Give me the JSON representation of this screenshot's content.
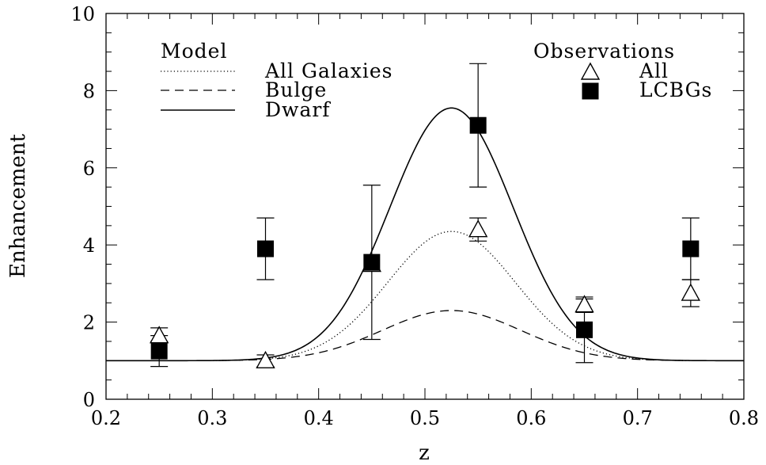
{
  "chart_data": {
    "type": "scatter",
    "xlabel": "z",
    "ylabel": "Enhancement",
    "xlim": [
      0.2,
      0.8
    ],
    "ylim": [
      0,
      10
    ],
    "xticks": [
      "0.2",
      "0.3",
      "0.4",
      "0.5",
      "0.6",
      "0.7",
      "0.8"
    ],
    "yticks": [
      "0",
      "2",
      "4",
      "6",
      "8",
      "10"
    ],
    "grid": false,
    "model_legend": {
      "title": "Model",
      "entries": [
        {
          "name": "All Galaxies",
          "style": "dotted"
        },
        {
          "name": "Bulge",
          "style": "dashed"
        },
        {
          "name": "Dwarf",
          "style": "solid"
        }
      ]
    },
    "observations_legend": {
      "title": "Observations",
      "entries": [
        {
          "name": "All",
          "marker": "open-triangle"
        },
        {
          "name": "LCBGs",
          "marker": "filled-square"
        }
      ]
    },
    "curves": [
      {
        "name": "All Galaxies",
        "style": "dotted",
        "center": 0.525,
        "sigma": 0.06,
        "baseline": 1.0,
        "peak": 4.35
      },
      {
        "name": "Bulge",
        "style": "dashed",
        "center": 0.525,
        "sigma": 0.065,
        "baseline": 1.0,
        "peak": 2.3
      },
      {
        "name": "Dwarf",
        "style": "solid",
        "center": 0.525,
        "sigma": 0.058,
        "baseline": 1.0,
        "peak": 7.55
      }
    ],
    "series": [
      {
        "name": "All",
        "marker": "open-triangle",
        "points": [
          {
            "x": 0.25,
            "y": 1.65,
            "err_low": 1.5,
            "err_high": 1.85
          },
          {
            "x": 0.35,
            "y": 1.0,
            "err_low": 0.85,
            "err_high": 1.15
          },
          {
            "x": 0.45,
            "y": 3.5,
            "err_low": 3.5,
            "err_high": 3.5
          },
          {
            "x": 0.55,
            "y": 4.4,
            "err_low": 4.1,
            "err_high": 4.7
          },
          {
            "x": 0.65,
            "y": 2.45,
            "err_low": 2.25,
            "err_high": 2.65
          },
          {
            "x": 0.75,
            "y": 2.75,
            "err_low": 2.4,
            "err_high": 3.1
          }
        ]
      },
      {
        "name": "LCBGs",
        "marker": "filled-square",
        "points": [
          {
            "x": 0.25,
            "y": 1.25,
            "err_low": 0.85,
            "err_high": 1.65
          },
          {
            "x": 0.35,
            "y": 3.9,
            "err_low": 3.1,
            "err_high": 4.7
          },
          {
            "x": 0.45,
            "y": 3.55,
            "err_low": 1.55,
            "err_high": 5.55
          },
          {
            "x": 0.55,
            "y": 7.1,
            "err_low": 5.5,
            "err_high": 8.7
          },
          {
            "x": 0.65,
            "y": 1.8,
            "err_low": 0.95,
            "err_high": 2.6
          },
          {
            "x": 0.75,
            "y": 3.9,
            "err_low": 3.1,
            "err_high": 4.7
          }
        ]
      }
    ]
  }
}
